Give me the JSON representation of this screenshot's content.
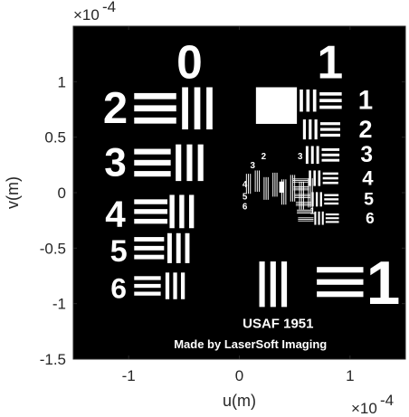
{
  "chart_data": {
    "type": "heatmap",
    "colormap": "gray",
    "xlabel": "u(m)",
    "ylabel": "v(m)",
    "x_multiplier": "×10",
    "x_exponent": "-4",
    "y_multiplier": "×10",
    "y_exponent": "-4",
    "xlim": [
      -1.5,
      1.5
    ],
    "ylim": [
      -1.5,
      1.5
    ],
    "x_ticks": [
      {
        "value": -1,
        "label": "-1"
      },
      {
        "value": 0,
        "label": "0"
      },
      {
        "value": 1,
        "label": "1"
      }
    ],
    "y_ticks": [
      {
        "value": 1,
        "label": "1"
      },
      {
        "value": 0.5,
        "label": "0.5"
      },
      {
        "value": 0,
        "label": "0"
      },
      {
        "value": -0.5,
        "label": "-0.5"
      },
      {
        "value": -1,
        "label": "-1"
      },
      {
        "value": -1.5,
        "label": "-1.5"
      }
    ],
    "image": {
      "background": "#000000",
      "foreground": "#ffffff",
      "caption_line1": "USAF 1951",
      "caption_line2": "Made by LaserSoft Imaging"
    },
    "groups": [
      {
        "label": "0",
        "x": -0.45,
        "y": 1.18,
        "size": 0.42
      },
      {
        "label": "1",
        "x": 0.82,
        "y": 1.18,
        "size": 0.42
      }
    ],
    "elements": [
      {
        "label": "2",
        "x": -1.12,
        "y": 0.76,
        "size": 0.4,
        "barw": 0.055,
        "barlen": 0.38,
        "gx": -0.95,
        "vx": -0.38,
        "yc": 0.76
      },
      {
        "label": "3",
        "x": -1.12,
        "y": 0.27,
        "size": 0.36,
        "barw": 0.05,
        "barlen": 0.33,
        "gx": -0.95,
        "vx": -0.45,
        "yc": 0.27
      },
      {
        "label": "4",
        "x": -1.12,
        "y": -0.19,
        "size": 0.33,
        "barw": 0.044,
        "barlen": 0.3,
        "gx": -0.95,
        "vx": -0.52,
        "yc": -0.17
      },
      {
        "label": "5",
        "x": -1.09,
        "y": -0.53,
        "size": 0.28,
        "barw": 0.04,
        "barlen": 0.27,
        "gx": -0.95,
        "vx": -0.55,
        "yc": -0.5
      },
      {
        "label": "6",
        "x": -1.09,
        "y": -0.86,
        "size": 0.26,
        "barw": 0.035,
        "barlen": 0.24,
        "gx": -0.95,
        "vx": -0.58,
        "yc": -0.84
      }
    ],
    "right_elements": [
      {
        "label": "1",
        "yc": 0.83,
        "barw": 0.03,
        "barlen": 0.2,
        "vx": 0.62,
        "hx": 0.92,
        "size": 0.24
      },
      {
        "label": "2",
        "yc": 0.57,
        "barw": 0.026,
        "barlen": 0.18,
        "vx": 0.64,
        "hx": 0.92,
        "size": 0.22
      },
      {
        "label": "3",
        "yc": 0.34,
        "barw": 0.024,
        "barlen": 0.16,
        "vx": 0.66,
        "hx": 0.93,
        "size": 0.2
      },
      {
        "label": "4",
        "yc": 0.13,
        "barw": 0.021,
        "barlen": 0.14,
        "vx": 0.68,
        "hx": 0.94,
        "size": 0.18
      },
      {
        "label": "5",
        "yc": -0.06,
        "barw": 0.019,
        "barlen": 0.13,
        "vx": 0.7,
        "hx": 0.95,
        "size": 0.16
      },
      {
        "label": "6",
        "yc": -0.23,
        "barw": 0.017,
        "barlen": 0.12,
        "vx": 0.72,
        "hx": 0.96,
        "size": 0.14
      }
    ],
    "inner_labels": [
      "2",
      "3",
      "3",
      "4",
      "5",
      "6",
      "1"
    ],
    "big_bottom_right_label": "1"
  }
}
